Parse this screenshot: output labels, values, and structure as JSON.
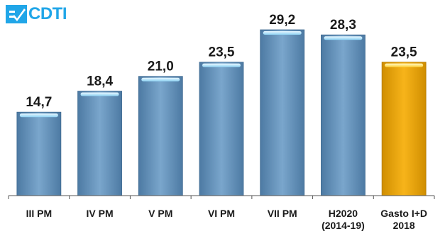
{
  "logo": {
    "text": "CDTI",
    "color": "#21a6e8"
  },
  "chart_data": {
    "type": "bar",
    "categories": [
      [
        "III PM"
      ],
      [
        "IV PM"
      ],
      [
        "V PM"
      ],
      [
        "VI PM"
      ],
      [
        "VII PM"
      ],
      [
        "H2020",
        "(2014-19)"
      ],
      [
        "Gasto I+D",
        "2018"
      ]
    ],
    "values": [
      14.7,
      18.4,
      21.0,
      23.5,
      29.2,
      28.3,
      23.5
    ],
    "data_labels": [
      "14,7",
      "18,4",
      "21,0",
      "23,5",
      "29,2",
      "28,3",
      "23,5"
    ],
    "bar_colors": [
      "#6a96be",
      "#6a96be",
      "#6a96be",
      "#6a96be",
      "#6a96be",
      "#6a96be",
      "#f0a800"
    ],
    "ylim": [
      0,
      29.2
    ],
    "grid": false,
    "legend": "none",
    "title": "",
    "xlabel": "",
    "ylabel": ""
  }
}
